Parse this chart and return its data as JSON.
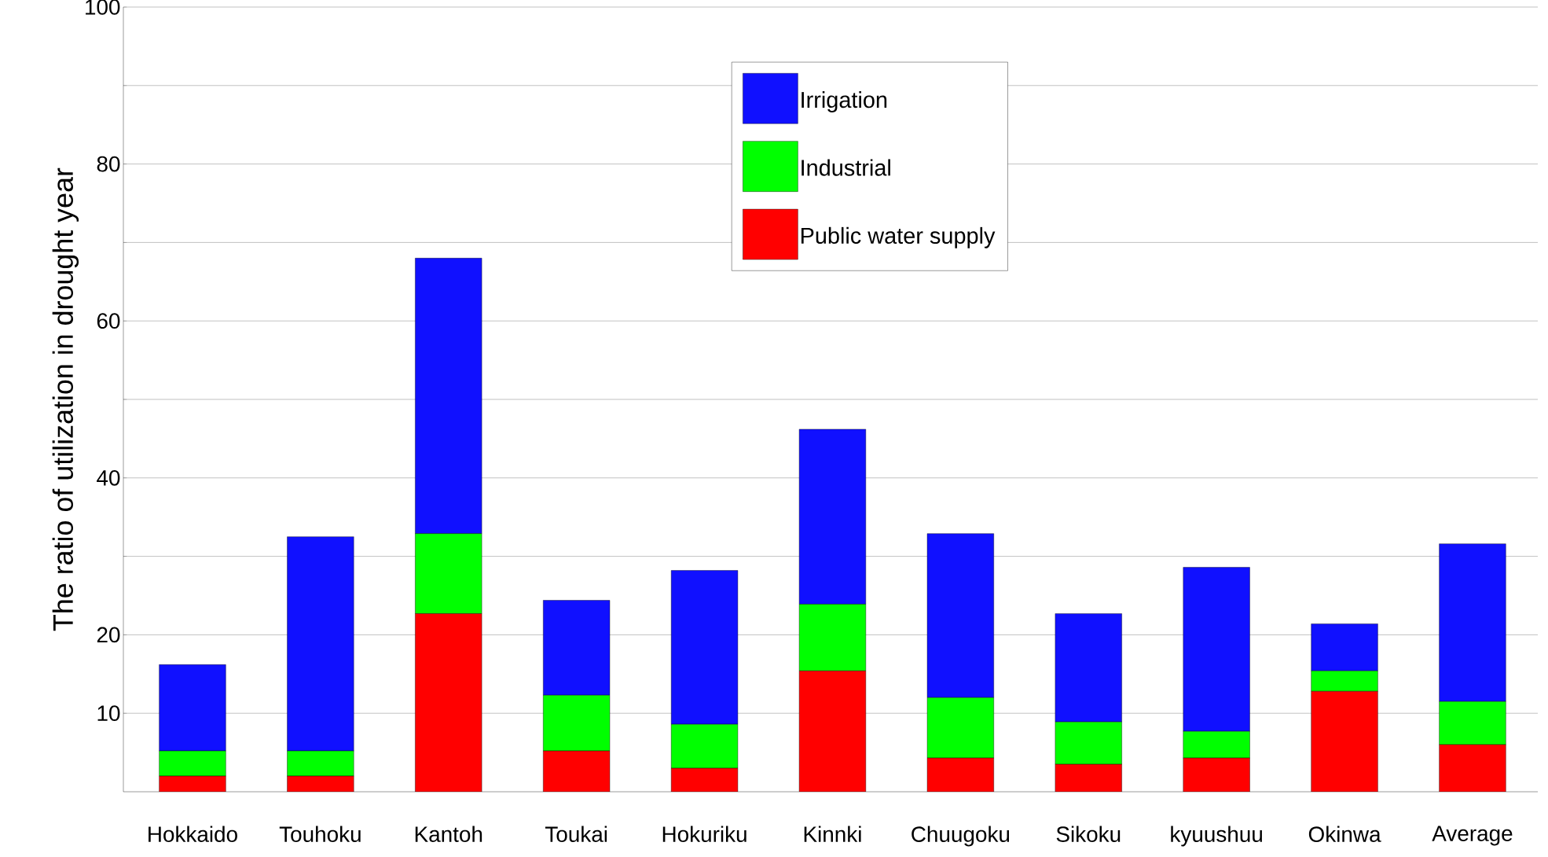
{
  "chart_data": {
    "type": "bar",
    "stacked": true,
    "ylabel": "The ratio of utilization in drought year",
    "categories": [
      "Hokkaido",
      "Touhoku",
      "Kantoh",
      "Toukai",
      "Hokuriku",
      "Kinnki",
      "Chuugoku",
      "Sikoku",
      "kyuushuu",
      "Okinwa",
      "Average"
    ],
    "series": [
      {
        "name": "Public water supply",
        "color": "#ff0000",
        "values": [
          2.0,
          2.0,
          22.7,
          5.2,
          3.0,
          15.4,
          4.3,
          3.5,
          4.3,
          12.8,
          6.0
        ]
      },
      {
        "name": "Industrial",
        "color": "#00ff00",
        "values": [
          3.2,
          3.2,
          10.2,
          7.1,
          5.6,
          8.5,
          7.7,
          5.4,
          3.4,
          2.6,
          5.5
        ]
      },
      {
        "name": "Irrigation",
        "color": "#1010ff",
        "values": [
          11.0,
          27.3,
          35.1,
          12.1,
          19.6,
          22.3,
          20.9,
          13.8,
          20.9,
          6.0,
          20.1
        ]
      }
    ],
    "ylim": [
      0,
      100
    ],
    "yticks": [
      10,
      20,
      {
        "value": 30,
        "label": null
      },
      40,
      {
        "value": 50,
        "label": null
      },
      60,
      {
        "value": 70,
        "label": null
      },
      80,
      {
        "value": 90,
        "label": null
      },
      100
    ],
    "grid": "y",
    "legend": "top right"
  }
}
